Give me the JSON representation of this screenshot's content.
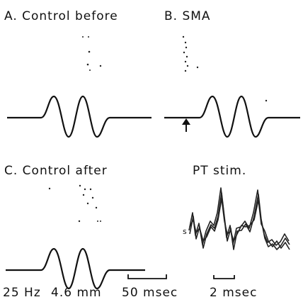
{
  "panels": [
    {
      "label": "A. Control before"
    },
    {
      "label": "B. SMA"
    },
    {
      "label": "C. Control after"
    },
    {
      "label": "PT stim."
    }
  ],
  "trace_label": "s",
  "footer": [
    "25 Hz",
    "4.6 mm",
    "50 msec",
    "2 msec"
  ]
}
